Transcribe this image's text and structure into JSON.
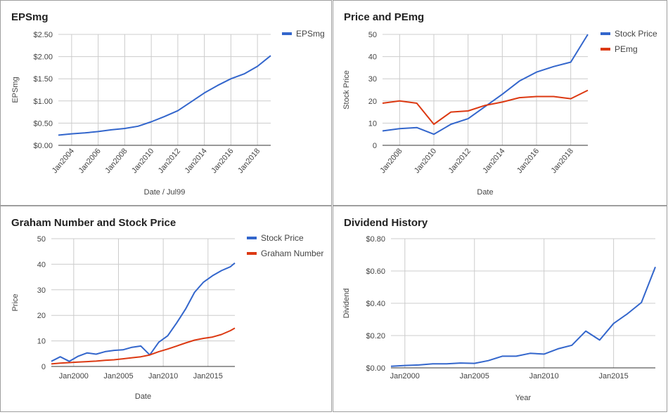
{
  "colors": {
    "blue": "#3366cc",
    "red": "#dc3912"
  },
  "chart_data": [
    {
      "type": "line",
      "title": "EPSmg",
      "xlabel": "Date / Jul99",
      "ylabel": "EPSmg",
      "x_ticks": [
        "Jan2004",
        "Jan2006",
        "Jan2008",
        "Jan2010",
        "Jan2012",
        "Jan2014",
        "Jan2016",
        "Jan2018"
      ],
      "y_ticks": [
        "$0.00",
        "$0.50",
        "$1.00",
        "$1.50",
        "$2.00",
        "$2.50"
      ],
      "ylim": [
        0,
        2.5
      ],
      "xlim": [
        2003,
        2019
      ],
      "legend_position": "right",
      "series": [
        {
          "name": "EPSmg",
          "color": "#3366cc",
          "x": [
            2003,
            2004,
            2005,
            2006,
            2007,
            2008,
            2009,
            2010,
            2011,
            2012,
            2013,
            2014,
            2015,
            2016,
            2017,
            2018,
            2019
          ],
          "y": [
            0.23,
            0.26,
            0.28,
            0.31,
            0.35,
            0.38,
            0.43,
            0.53,
            0.65,
            0.78,
            0.98,
            1.18,
            1.35,
            1.5,
            1.61,
            1.78,
            2.02
          ]
        }
      ]
    },
    {
      "type": "line",
      "title": "Price and PEmg",
      "xlabel": "Date",
      "ylabel": "Stock Price",
      "x_ticks": [
        "Jan2008",
        "Jan2010",
        "Jan2012",
        "Jan2014",
        "Jan2016",
        "Jan2018"
      ],
      "y_ticks": [
        "0",
        "10",
        "20",
        "30",
        "40",
        "50"
      ],
      "ylim": [
        0,
        50
      ],
      "xlim": [
        2007,
        2019
      ],
      "legend_position": "right",
      "series": [
        {
          "name": "Stock Price",
          "color": "#3366cc",
          "x": [
            2007,
            2008,
            2009,
            2010,
            2011,
            2012,
            2013,
            2014,
            2015,
            2016,
            2017,
            2018,
            2019
          ],
          "y": [
            6.5,
            7.5,
            8.0,
            5.0,
            9.5,
            12.0,
            17.5,
            23.0,
            29.0,
            33.0,
            35.5,
            37.5,
            50.0
          ]
        },
        {
          "name": "PEmg",
          "color": "#dc3912",
          "x": [
            2007,
            2008,
            2009,
            2010,
            2011,
            2012,
            2013,
            2014,
            2015,
            2016,
            2017,
            2018,
            2019
          ],
          "y": [
            19.0,
            20.0,
            19.0,
            9.5,
            15.0,
            15.5,
            18.0,
            19.5,
            21.5,
            22.0,
            22.0,
            21.0,
            24.8
          ]
        }
      ]
    },
    {
      "type": "line",
      "title": "Graham Number and Stock Price",
      "xlabel": "Date",
      "ylabel": "Price",
      "x_ticks": [
        "Jan2000",
        "Jan2005",
        "Jan2010",
        "Jan2015"
      ],
      "y_ticks": [
        "0",
        "10",
        "20",
        "30",
        "40",
        "50"
      ],
      "ylim": [
        0,
        50
      ],
      "xlim": [
        1997.5,
        2018
      ],
      "legend_position": "right",
      "series": [
        {
          "name": "Stock Price",
          "color": "#3366cc",
          "x": [
            1997.5,
            1998.5,
            1999.5,
            2000.5,
            2001.5,
            2002.5,
            2003.5,
            2004.5,
            2005.5,
            2006.5,
            2007.5,
            2008.5,
            2009.5,
            2010.5,
            2011.5,
            2012.5,
            2013.5,
            2014.5,
            2015.5,
            2016.5,
            2017.5,
            2018
          ],
          "y": [
            2.0,
            3.8,
            2.0,
            4.0,
            5.3,
            4.8,
            5.8,
            6.3,
            6.5,
            7.5,
            8.0,
            4.5,
            9.5,
            12.0,
            17.0,
            22.5,
            29.0,
            33.0,
            35.5,
            37.5,
            39.0,
            40.5
          ]
        },
        {
          "name": "Graham Number",
          "color": "#dc3912",
          "x": [
            1997.5,
            1998.5,
            1999.5,
            2000.5,
            2001.5,
            2002.5,
            2003.5,
            2004.5,
            2005.5,
            2006.5,
            2007.5,
            2008.5,
            2009.5,
            2010.5,
            2011.5,
            2012.5,
            2013.5,
            2014.5,
            2015.5,
            2016.5,
            2017.5,
            2018
          ],
          "y": [
            1.0,
            1.3,
            1.5,
            1.7,
            1.9,
            2.1,
            2.4,
            2.6,
            3.0,
            3.4,
            3.8,
            4.5,
            5.8,
            6.8,
            8.0,
            9.2,
            10.3,
            11.0,
            11.5,
            12.5,
            14.0,
            15.0
          ]
        }
      ]
    },
    {
      "type": "line",
      "title": "Dividend History",
      "xlabel": "Year",
      "ylabel": "Dividend",
      "x_ticks": [
        "Jan2000",
        "Jan2005",
        "Jan2010",
        "Jan2015"
      ],
      "y_ticks": [
        "$0.00",
        "$0.20",
        "$0.40",
        "$0.60",
        "$0.80"
      ],
      "ylim": [
        0,
        0.8
      ],
      "xlim": [
        1999,
        2018
      ],
      "series": [
        {
          "name": "Dividend",
          "color": "#3366cc",
          "x": [
            1999,
            2000,
            2001,
            2002,
            2003,
            2004,
            2005,
            2006,
            2007,
            2008,
            2009,
            2010,
            2011,
            2012,
            2013,
            2014,
            2015,
            2016,
            2017,
            2018
          ],
          "y": [
            0.01,
            0.015,
            0.018,
            0.025,
            0.025,
            0.03,
            0.028,
            0.045,
            0.072,
            0.072,
            0.09,
            0.085,
            0.118,
            0.14,
            0.228,
            0.172,
            0.275,
            0.335,
            0.405,
            0.625
          ]
        }
      ]
    }
  ]
}
